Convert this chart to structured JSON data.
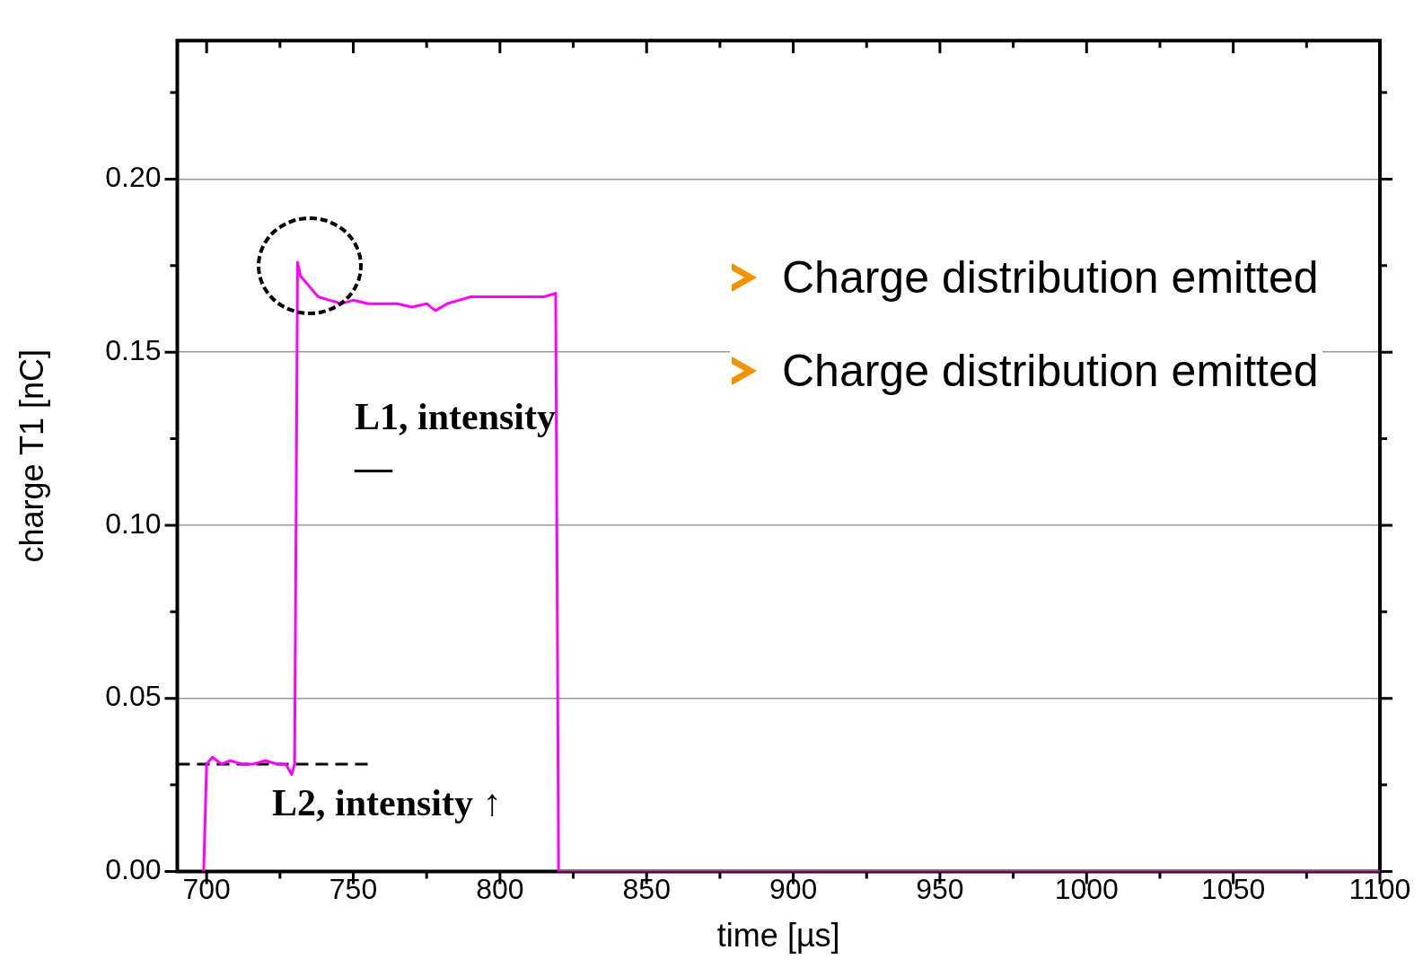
{
  "chart_data": {
    "type": "line",
    "xlabel": "time [µs]",
    "ylabel": "charge T1 [nC]",
    "xlim": [
      690,
      1100
    ],
    "ylim": [
      0,
      0.24
    ],
    "xticks": [
      700,
      {
        "value": 725,
        "label": null
      },
      750,
      {
        "value": 775,
        "label": null
      },
      800,
      {
        "value": 825,
        "label": null
      },
      850,
      {
        "value": 875,
        "label": null
      },
      900,
      {
        "value": 925,
        "label": null
      },
      950,
      {
        "value": 975,
        "label": null
      },
      1000,
      {
        "value": 1025,
        "label": null
      },
      1050,
      {
        "value": 1075,
        "label": null
      },
      1100
    ],
    "yticks": [
      {
        "value": 0,
        "label": "0.00"
      },
      {
        "value": 0.025,
        "label": null
      },
      {
        "value": 0.05,
        "label": "0.05"
      },
      {
        "value": 0.075,
        "label": null
      },
      {
        "value": 0.1,
        "label": "0.10"
      },
      {
        "value": 0.125,
        "label": null
      },
      {
        "value": 0.15,
        "label": "0.15"
      },
      {
        "value": 0.175,
        "label": null
      },
      {
        "value": 0.2,
        "label": "0.20"
      },
      {
        "value": 0.225,
        "label": null
      }
    ],
    "grid": "y",
    "legend": false,
    "marker": "none",
    "line_style": "solid",
    "series": [
      {
        "color": "#ff00ff",
        "x": [
          699,
          700,
          702,
          705,
          708,
          712,
          716,
          720,
          724,
          727,
          729,
          730,
          731,
          732,
          735,
          738,
          742,
          746,
          750,
          755,
          760,
          765,
          770,
          775,
          778,
          782,
          786,
          790,
          795,
          800,
          805,
          810,
          815,
          819,
          820,
          822,
          825,
          830,
          840,
          850,
          860,
          870,
          880,
          890,
          900,
          910,
          920,
          930,
          940,
          950,
          960,
          970,
          980,
          1000,
          1020,
          1040,
          1060,
          1080,
          1100
        ],
        "values": [
          0,
          0.031,
          0.033,
          0.031,
          0.032,
          0.031,
          0.031,
          0.032,
          0.031,
          0.031,
          0.028,
          0.031,
          0.176,
          0.172,
          0.169,
          0.166,
          0.165,
          0.164,
          0.165,
          0.164,
          0.164,
          0.164,
          0.163,
          0.164,
          0.162,
          0.164,
          0.165,
          0.166,
          0.166,
          0.166,
          0.166,
          0.166,
          0.166,
          0.167,
          0,
          0,
          0,
          0,
          0,
          0,
          0,
          0,
          0,
          0,
          0,
          0,
          0,
          0,
          0,
          0,
          0,
          0,
          0,
          0,
          0,
          0,
          0,
          0,
          0
        ]
      }
    ],
    "ref_lines": [
      {
        "axis": "y",
        "value": 0.031,
        "color": "#000000",
        "line_style": "dashed"
      }
    ],
    "annotations": [
      "Charge distribution emitted",
      "Charge distribution emitted",
      "L1, intensity —",
      "L2, intensity ↑"
    ]
  }
}
